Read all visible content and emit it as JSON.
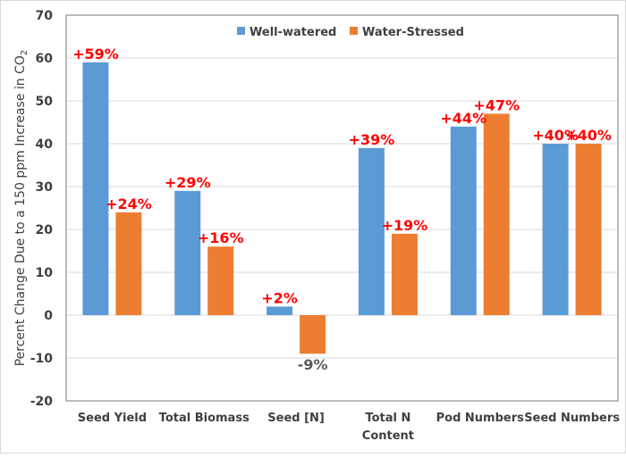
{
  "chart_data": {
    "type": "bar",
    "title": "",
    "xlabel": "",
    "ylabel": "Percent Change Due to a 150 ppm Increase in CO2",
    "ylim": [
      -20,
      70
    ],
    "yticks": [
      70,
      60,
      50,
      40,
      30,
      20,
      10,
      0,
      -10,
      -20
    ],
    "grid": true,
    "legend_position": "top-center",
    "categories": [
      [
        "Seed Yield"
      ],
      [
        "Total Biomass"
      ],
      [
        "Seed [N]"
      ],
      [
        "Total N",
        "Content"
      ],
      [
        "Pod Numbers"
      ],
      [
        "Seed Numbers"
      ]
    ],
    "series": [
      {
        "name": "Well-watered",
        "color": "#5b9bd5",
        "values": [
          59,
          29,
          2,
          39,
          44,
          40
        ],
        "labels": [
          "+59%",
          "+29%",
          "+2%",
          "+39%",
          "+44%",
          "+40%"
        ]
      },
      {
        "name": "Water-Stressed",
        "color": "#ed7d31",
        "values": [
          24,
          16,
          -9,
          19,
          47,
          40
        ],
        "labels": [
          "+24%",
          "+16%",
          "-9%",
          "+19%",
          "+47%",
          "+40%"
        ]
      }
    ],
    "label_colors": {
      "positive": "#ff0000",
      "negative": "#595959"
    }
  }
}
